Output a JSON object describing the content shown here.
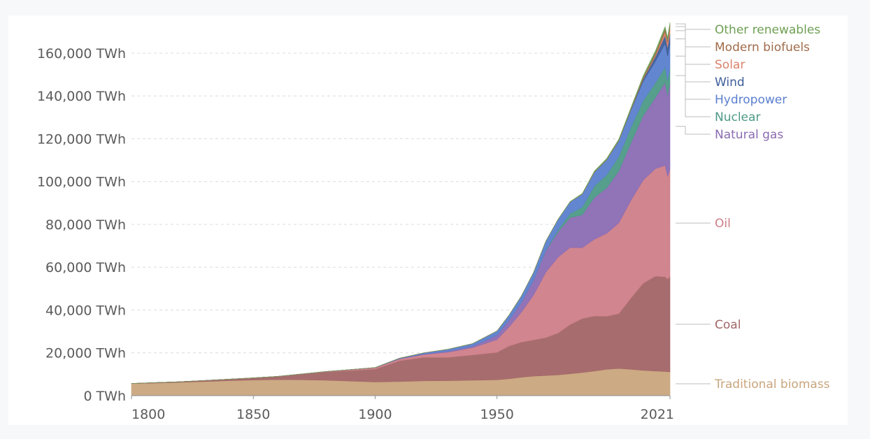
{
  "chart_data": {
    "type": "area",
    "stacked": true,
    "title": "",
    "xlabel": "",
    "ylabel": "",
    "unit": "TWh",
    "x": [
      1800,
      1810,
      1820,
      1830,
      1840,
      1850,
      1860,
      1870,
      1880,
      1890,
      1900,
      1910,
      1920,
      1930,
      1940,
      1950,
      1955,
      1960,
      1965,
      1970,
      1975,
      1980,
      1985,
      1990,
      1995,
      2000,
      2005,
      2010,
      2015,
      2019,
      2020,
      2021
    ],
    "series": [
      {
        "name": "Traditional biomass",
        "color": "#c9a57d",
        "values": [
          5600,
          5900,
          6200,
          6600,
          7000,
          7300,
          7500,
          7400,
          7200,
          6800,
          6400,
          6600,
          6900,
          7000,
          7200,
          7400,
          7900,
          8600,
          9100,
          9400,
          9700,
          10200,
          10800,
          11500,
          12300,
          12700,
          12300,
          11800,
          11500,
          11300,
          11200,
          11100
        ]
      },
      {
        "name": "Coal",
        "color": "#a26566",
        "values": [
          100,
          200,
          300,
          500,
          700,
          1000,
          1500,
          2700,
          3900,
          4900,
          6000,
          9700,
          11000,
          10900,
          11800,
          12800,
          15300,
          16400,
          16900,
          17700,
          19500,
          23000,
          25200,
          25700,
          24800,
          25600,
          33300,
          40700,
          44300,
          44200,
          43300,
          44500
        ]
      },
      {
        "name": "Oil",
        "color": "#cd7e89",
        "values": [
          0,
          0,
          0,
          0,
          0,
          0,
          0,
          50,
          150,
          400,
          600,
          800,
          1300,
          2400,
          3400,
          6000,
          9000,
          14000,
          21000,
          30500,
          35400,
          36000,
          33100,
          35900,
          38700,
          42400,
          45700,
          48200,
          50200,
          52100,
          48000,
          50000
        ]
      },
      {
        "name": "Natural gas",
        "color": "#8b6bb3",
        "values": [
          0,
          0,
          0,
          0,
          0,
          0,
          0,
          0,
          50,
          80,
          100,
          200,
          300,
          500,
          700,
          2100,
          3100,
          4500,
          6900,
          10000,
          11800,
          14000,
          15300,
          19500,
          21200,
          24200,
          26800,
          30000,
          33200,
          38700,
          37800,
          40400
        ]
      },
      {
        "name": "Nuclear",
        "color": "#4d9a87",
        "values": [
          0,
          0,
          0,
          0,
          0,
          0,
          0,
          0,
          0,
          0,
          0,
          0,
          0,
          0,
          0,
          0,
          0,
          30,
          100,
          230,
          1000,
          1900,
          3700,
          5400,
          6100,
          6800,
          7300,
          7100,
          6900,
          7200,
          6900,
          7000
        ]
      },
      {
        "name": "Hydropower",
        "color": "#5b7fcf",
        "values": [
          0,
          0,
          0,
          0,
          0,
          0,
          0,
          0,
          0,
          0,
          20,
          200,
          500,
          900,
          1200,
          1900,
          2400,
          3000,
          3500,
          4200,
          4800,
          5400,
          6000,
          6400,
          7000,
          7300,
          8000,
          9000,
          10000,
          11000,
          11300,
          11200
        ]
      },
      {
        "name": "Wind",
        "color": "#3e5e9a",
        "values": [
          0,
          0,
          0,
          0,
          0,
          0,
          0,
          0,
          0,
          0,
          0,
          0,
          0,
          0,
          0,
          0,
          0,
          0,
          0,
          0,
          0,
          0,
          0,
          10,
          20,
          80,
          300,
          900,
          2200,
          3700,
          4200,
          4900
        ]
      },
      {
        "name": "Solar",
        "color": "#d9826c",
        "values": [
          0,
          0,
          0,
          0,
          0,
          0,
          0,
          0,
          0,
          0,
          0,
          0,
          0,
          0,
          0,
          0,
          0,
          0,
          0,
          0,
          0,
          0,
          0,
          0,
          0,
          0,
          10,
          90,
          700,
          1800,
          2200,
          2700
        ]
      },
      {
        "name": "Modern biofuels",
        "color": "#9f6b4a",
        "values": [
          0,
          0,
          0,
          0,
          0,
          0,
          0,
          0,
          0,
          0,
          0,
          0,
          0,
          0,
          0,
          0,
          0,
          0,
          0,
          0,
          0,
          10,
          90,
          140,
          180,
          200,
          300,
          800,
          1000,
          1150,
          1100,
          1200
        ]
      },
      {
        "name": "Other renewables",
        "color": "#6f9f54",
        "values": [
          0,
          0,
          0,
          0,
          0,
          0,
          0,
          0,
          0,
          0,
          0,
          0,
          0,
          0,
          0,
          0,
          0,
          0,
          0,
          0,
          50,
          150,
          250,
          400,
          450,
          500,
          600,
          800,
          1000,
          1200,
          1250,
          1300
        ]
      }
    ],
    "xlim": [
      1800,
      2021
    ],
    "ylim": [
      0,
      175000
    ],
    "yticks": [
      0,
      20000,
      40000,
      60000,
      80000,
      100000,
      120000,
      140000,
      160000
    ],
    "ytick_labels": [
      "0 TWh",
      "20,000 TWh",
      "40,000 TWh",
      "60,000 TWh",
      "80,000 TWh",
      "100,000 TWh",
      "120,000 TWh",
      "140,000 TWh",
      "160,000 TWh"
    ],
    "xticks": [
      1800,
      1850,
      1900,
      1950,
      2021
    ],
    "xtick_labels": [
      "1800",
      "1850",
      "1900",
      "1950",
      "2021"
    ],
    "grid": "horizontal dashed",
    "legend": "right, labels aligned to series"
  }
}
